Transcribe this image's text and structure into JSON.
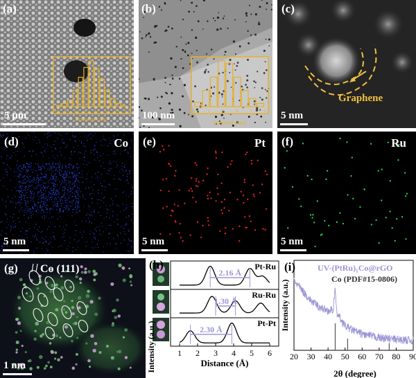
{
  "panels": {
    "a": {
      "label": "(a)",
      "scale": "5 μm",
      "inset_xlabel": "Diameter (μm)",
      "inset_ticks": [
        "0.0",
        "0.1",
        "0.2",
        "0.3",
        "0.4",
        "0.5",
        "0.6",
        "0.7"
      ]
    },
    "b": {
      "label": "(b)",
      "scale": "100 nm",
      "inset_xlabel": "Diameter (nm)",
      "inset_ticks": [
        "1",
        "2",
        "3",
        "4",
        "5",
        "6"
      ]
    },
    "c": {
      "label": "(c)",
      "scale": "5 nm",
      "annotation": "Graphene"
    },
    "d": {
      "label": "(d)",
      "element": "Co",
      "scale": "5 nm"
    },
    "e": {
      "label": "(e)",
      "element": "Pt",
      "scale": "5 nm"
    },
    "f": {
      "label": "(f)",
      "element": "Ru",
      "scale": "5 nm"
    },
    "g": {
      "label": "(g)",
      "annotation": "Co (111)",
      "scale": "1 nm"
    },
    "h": {
      "label": "(h)",
      "ylabel": "Intensity (a.u.)",
      "xlabel": "Distance (Å)",
      "xticks": [
        "1",
        "2",
        "3",
        "4",
        "5",
        "6"
      ],
      "profiles": [
        {
          "name": "Pt-Ru",
          "distance": "2.16 Å"
        },
        {
          "name": "Ru-Ru",
          "distance": "1.30 Å"
        },
        {
          "name": "Pt-Pt",
          "distance": "2.30 Å"
        }
      ]
    },
    "i": {
      "label": "(i)",
      "ylabel": "Intensity (a.u.)",
      "xlabel": "2θ (degree)",
      "legend1": "UV-(PtRu)₁Co@rGO",
      "legend2": "Co (PDF#15-0806)",
      "xticks": [
        "20",
        "30",
        "40",
        "50",
        "60",
        "70",
        "80",
        "90"
      ]
    }
  },
  "chart_data": [
    {
      "type": "bar",
      "title": "",
      "xlabel": "Diameter (μm)",
      "ylabel": "",
      "categories": [
        "0.05",
        "0.1",
        "0.15",
        "0.2",
        "0.25",
        "0.3",
        "0.35",
        "0.4",
        "0.45",
        "0.5",
        "0.55",
        "0.6",
        "0.65"
      ],
      "values": [
        2,
        5,
        10,
        25,
        45,
        60,
        70,
        58,
        42,
        25,
        12,
        5,
        2
      ]
    },
    {
      "type": "bar",
      "title": "",
      "xlabel": "Diameter (nm)",
      "ylabel": "",
      "categories": [
        "1.5",
        "2",
        "2.5",
        "3",
        "3.5",
        "4",
        "4.5",
        "5",
        "5.5"
      ],
      "values": [
        8,
        30,
        55,
        85,
        80,
        55,
        30,
        15,
        6
      ]
    },
    {
      "type": "line",
      "title": "",
      "xlabel": "2θ (degree)",
      "ylabel": "Intensity (a.u.)",
      "xlim": [
        20,
        90
      ],
      "series": [
        {
          "name": "UV-(PtRu)₁Co@rGO",
          "x": [
            20,
            25,
            30,
            35,
            40,
            43,
            44.2,
            45,
            48,
            50,
            55,
            60,
            70,
            80,
            90
          ],
          "y": [
            0.78,
            0.66,
            0.55,
            0.48,
            0.44,
            0.45,
            0.68,
            0.42,
            0.33,
            0.27,
            0.22,
            0.18,
            0.14,
            0.12,
            0.11
          ]
        },
        {
          "name": "Co (PDF#15-0806)",
          "x": [
            44.2,
            51.5,
            75.9
          ],
          "y": [
            0.3,
            0.13,
            0.08
          ]
        }
      ]
    }
  ]
}
